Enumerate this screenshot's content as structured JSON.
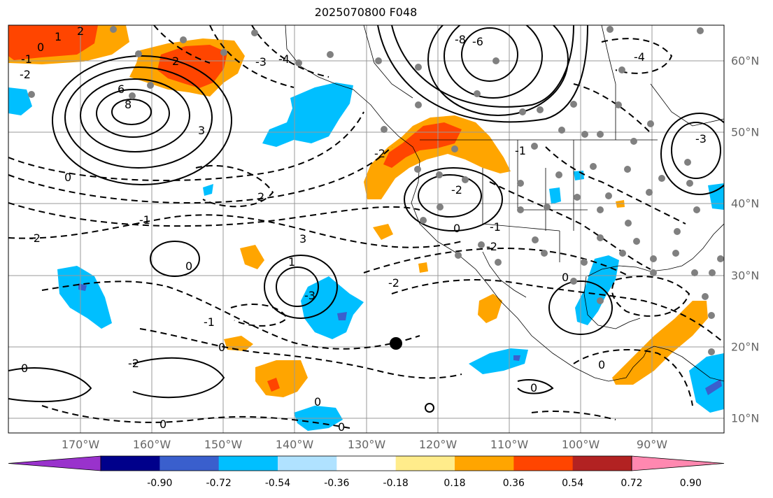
{
  "title": "2025070800 F048",
  "map": {
    "lon_range": [
      -180,
      -80
    ],
    "lat_range": [
      8,
      66
    ],
    "gridlines": true,
    "station_markers": "grey dots",
    "contours": "solid positive / dashed negative, black"
  },
  "axes": {
    "x_ticks": [
      "170°W",
      "160°W",
      "150°W",
      "140°W",
      "130°W",
      "120°W",
      "110°W",
      "100°W",
      "90°W"
    ],
    "y_ticks": [
      "60°N",
      "50°N",
      "40°N",
      "30°N",
      "20°N",
      "10°N"
    ]
  },
  "contour_labels": [
    "1",
    "2",
    "0",
    "-2",
    "-3",
    "6",
    "8",
    "-4",
    "-1",
    "2",
    "3",
    "-2",
    "0",
    "2",
    "-1",
    "3",
    "-2",
    "0",
    "1",
    "-3",
    "-1",
    "0",
    "-2",
    "0",
    "-2",
    "0",
    "0",
    "0",
    "-2",
    "-1",
    "-2",
    "0",
    "-1",
    "0",
    "0",
    "0",
    "-4",
    "-6",
    "-8",
    "-3"
  ],
  "colorbar": {
    "levels": [
      "-0.90",
      "-0.72",
      "-0.54",
      "-0.36",
      "-0.18",
      "0.18",
      "0.36",
      "0.54",
      "0.72",
      "0.90"
    ],
    "colors": [
      "#9932cc",
      "#00008b",
      "#3a5fcd",
      "#00bfff",
      "#b0e2ff",
      "#ffffff",
      "#ffec8b",
      "#ffa500",
      "#ff4500",
      "#b22222",
      "#ff88b0"
    ]
  }
}
